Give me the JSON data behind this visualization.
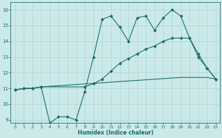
{
  "xlabel": "Humidex (Indice chaleur)",
  "xlim": [
    -0.5,
    23.5
  ],
  "ylim": [
    8.8,
    16.5
  ],
  "yticks": [
    9,
    10,
    11,
    12,
    13,
    14,
    15,
    16
  ],
  "xticks": [
    0,
    1,
    2,
    3,
    4,
    5,
    6,
    7,
    8,
    9,
    10,
    11,
    12,
    13,
    14,
    15,
    16,
    17,
    18,
    19,
    20,
    21,
    22,
    23
  ],
  "bg_color": "#cce9e9",
  "grid_color": "#aad4d4",
  "line_color": "#1a6b6b",
  "line1_x": [
    0,
    1,
    2,
    3,
    4,
    5,
    6,
    7,
    8,
    9,
    10,
    11,
    12,
    13,
    14,
    15,
    16,
    17,
    18,
    19,
    20,
    21,
    22,
    23
  ],
  "line1_y": [
    10.9,
    11.0,
    11.0,
    11.1,
    8.8,
    9.2,
    9.2,
    9.0,
    10.8,
    13.0,
    15.4,
    15.6,
    14.9,
    14.0,
    15.5,
    15.6,
    14.7,
    15.5,
    16.0,
    15.6,
    14.2,
    13.0,
    12.3,
    11.6
  ],
  "line2_x": [
    0,
    1,
    2,
    3,
    19,
    20,
    21,
    22,
    23
  ],
  "line2_y": [
    10.9,
    11.0,
    11.0,
    11.1,
    11.7,
    11.7,
    11.7,
    11.7,
    11.6
  ],
  "line3_x": [
    0,
    1,
    2,
    3,
    8,
    9,
    10,
    11,
    12,
    13,
    14,
    15,
    16,
    17,
    18,
    19,
    20,
    21,
    22,
    23
  ],
  "line3_y": [
    10.9,
    11.0,
    11.0,
    11.1,
    11.1,
    11.3,
    11.6,
    12.1,
    12.6,
    12.9,
    13.2,
    13.5,
    13.7,
    14.0,
    14.2,
    14.2,
    14.2,
    13.2,
    12.3,
    11.6
  ]
}
